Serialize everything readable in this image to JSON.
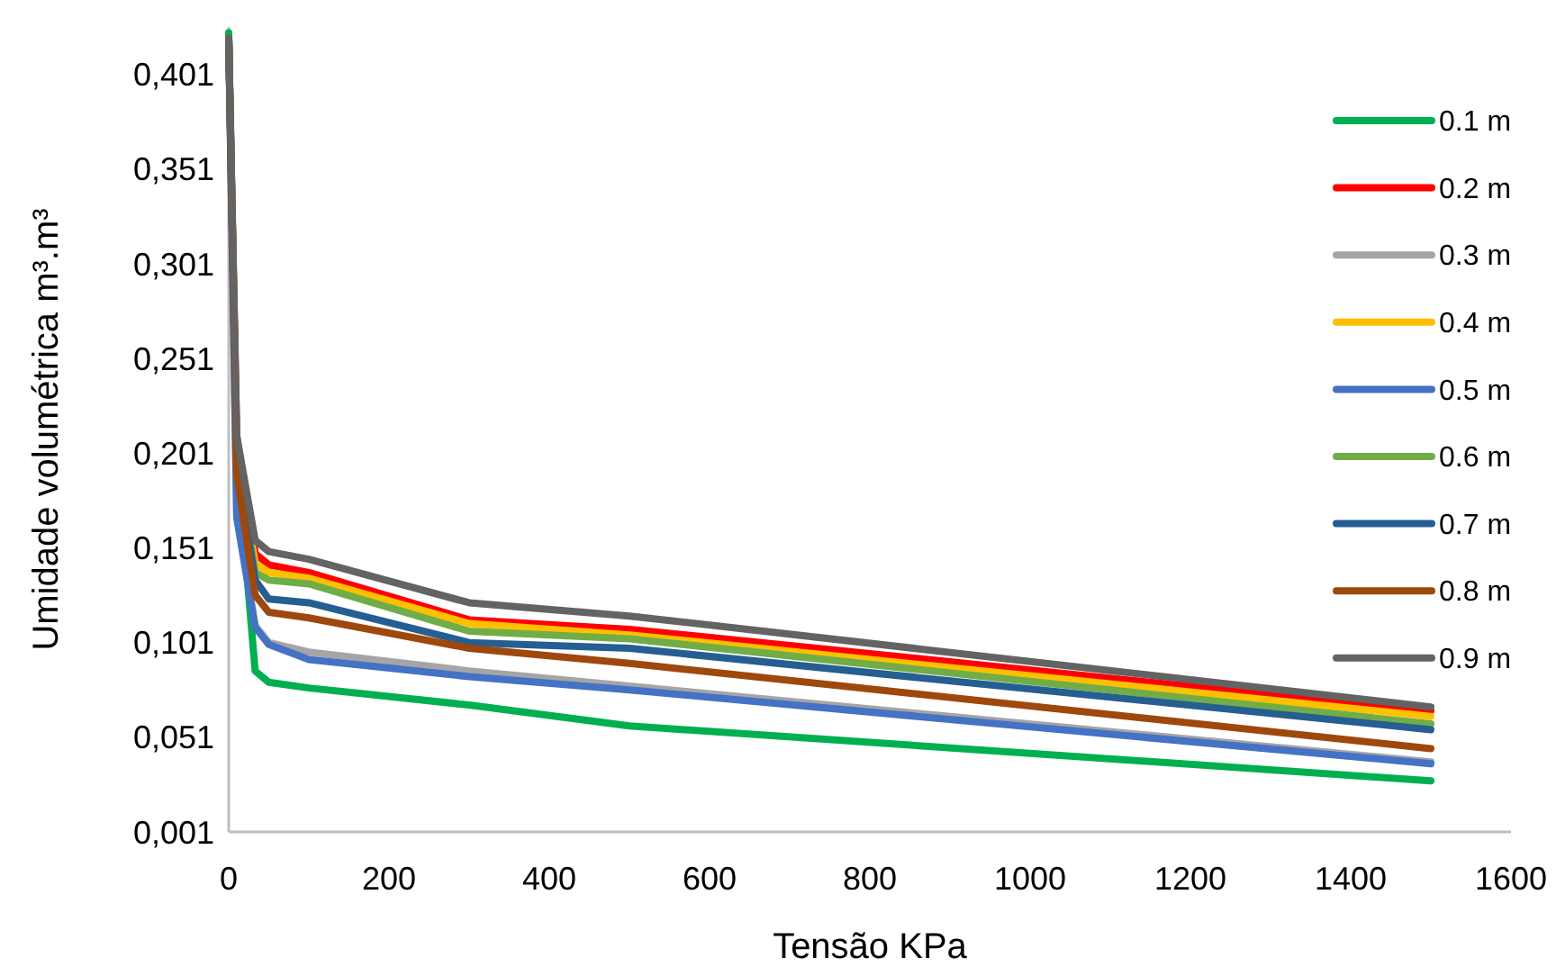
{
  "chart_data": {
    "type": "line",
    "xlabel": "Tensão KPa",
    "ylabel": "Umidade volumétrica m³.m³",
    "x": [
      0,
      10,
      33,
      50,
      100,
      300,
      500,
      1500
    ],
    "series": [
      {
        "name": "0.1 m",
        "color": "#00b050",
        "values": [
          0.423,
          0.2,
          0.086,
          0.08,
          0.077,
          0.068,
          0.057,
          0.028
        ]
      },
      {
        "name": "0.2 m",
        "color": "#ff0000",
        "values": [
          0.42,
          0.21,
          0.148,
          0.142,
          0.138,
          0.113,
          0.108,
          0.065
        ]
      },
      {
        "name": "0.3 m",
        "color": "#a5a5a5",
        "values": [
          0.42,
          0.17,
          0.11,
          0.101,
          0.096,
          0.086,
          0.078,
          0.038
        ]
      },
      {
        "name": "0.4 m",
        "color": "#ffc000",
        "values": [
          0.42,
          0.2,
          0.143,
          0.138,
          0.135,
          0.111,
          0.105,
          0.062
        ]
      },
      {
        "name": "0.5 m",
        "color": "#4472c4",
        "values": [
          0.42,
          0.167,
          0.109,
          0.1,
          0.092,
          0.083,
          0.076,
          0.037
        ]
      },
      {
        "name": "0.6 m",
        "color": "#70ad47",
        "values": [
          0.42,
          0.2,
          0.138,
          0.134,
          0.132,
          0.107,
          0.103,
          0.058
        ]
      },
      {
        "name": "0.7 m",
        "color": "#255e91",
        "values": [
          0.42,
          0.195,
          0.134,
          0.124,
          0.122,
          0.101,
          0.098,
          0.055
        ]
      },
      {
        "name": "0.8 m",
        "color": "#9e480e",
        "values": [
          0.42,
          0.19,
          0.126,
          0.117,
          0.114,
          0.098,
          0.09,
          0.045
        ]
      },
      {
        "name": "0.9 m",
        "color": "#636363",
        "values": [
          0.42,
          0.21,
          0.155,
          0.149,
          0.145,
          0.122,
          0.115,
          0.067
        ]
      }
    ],
    "xlim": [
      0,
      1600
    ],
    "ylim": [
      0.001,
      0.426
    ],
    "xticks": [
      0,
      200,
      400,
      600,
      800,
      1000,
      1200,
      1400,
      1600
    ],
    "yticks": [
      {
        "value": 0.001,
        "label": "0,001"
      },
      {
        "value": 0.051,
        "label": "0,051"
      },
      {
        "value": 0.101,
        "label": "0,101"
      },
      {
        "value": 0.151,
        "label": "0,151"
      },
      {
        "value": 0.201,
        "label": "0,201"
      },
      {
        "value": 0.251,
        "label": "0,251"
      },
      {
        "value": 0.301,
        "label": "0,301"
      },
      {
        "value": 0.351,
        "label": "0,351"
      },
      {
        "value": 0.401,
        "label": "0,401"
      }
    ],
    "legend": "right",
    "grid": false
  }
}
